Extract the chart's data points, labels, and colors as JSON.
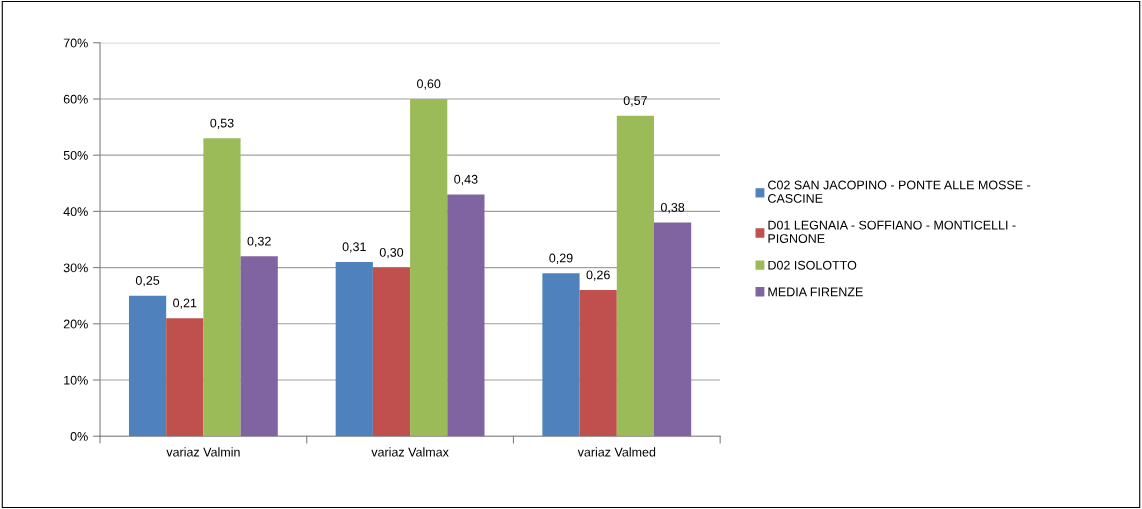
{
  "chart_data": {
    "type": "bar",
    "categories": [
      "variaz Valmin",
      "variaz Valmax",
      "variaz Valmed"
    ],
    "series": [
      {
        "name": "C02 SAN JACOPINO - PONTE ALLE MOSSE - CASCINE",
        "color": "#4f81bd",
        "values": [
          0.25,
          0.31,
          0.29
        ],
        "value_labels": [
          "0,25",
          "0,31",
          "0,29"
        ]
      },
      {
        "name": "D01 LEGNAIA - SOFFIANO - MONTICELLI - PIGNONE",
        "color": "#c0504d",
        "values": [
          0.21,
          0.3,
          0.26
        ],
        "value_labels": [
          "0,21",
          "0,30",
          "0,26"
        ]
      },
      {
        "name": "D02 ISOLOTTO",
        "color": "#9bbb59",
        "values": [
          0.53,
          0.6,
          0.57
        ],
        "value_labels": [
          "0,53",
          "0,60",
          "0,57"
        ]
      },
      {
        "name": "MEDIA FIRENZE",
        "color": "#8064a2",
        "values": [
          0.32,
          0.43,
          0.38
        ],
        "value_labels": [
          "0,32",
          "0,43",
          "0,38"
        ]
      }
    ],
    "ylim": [
      0,
      0.7
    ],
    "yticks": [
      {
        "value": 0,
        "label": "0%"
      },
      {
        "value": 0.1,
        "label": "10%"
      },
      {
        "value": 0.2,
        "label": "20%"
      },
      {
        "value": 0.3,
        "label": "30%"
      },
      {
        "value": 0.4,
        "label": "40%"
      },
      {
        "value": 0.5,
        "label": "50%"
      },
      {
        "value": 0.6,
        "label": "60%"
      },
      {
        "value": 0.7,
        "label": "70%"
      }
    ],
    "grid": "y",
    "legend": "right"
  }
}
